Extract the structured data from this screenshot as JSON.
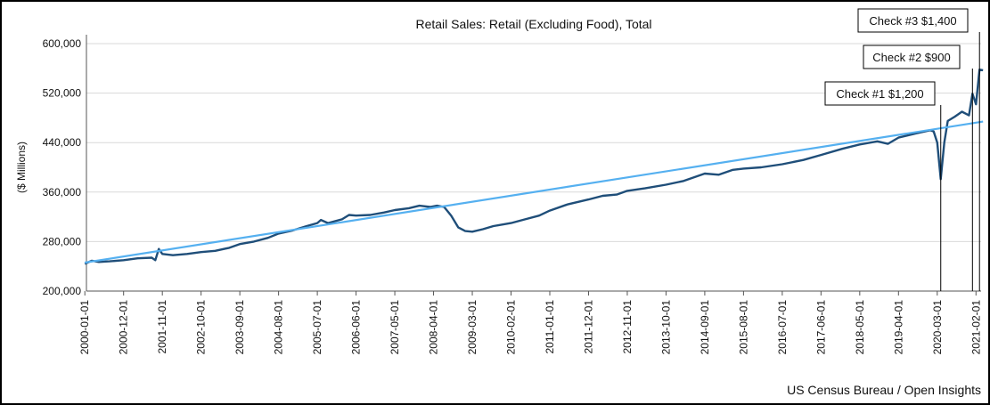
{
  "chart_data": {
    "type": "line",
    "title": "Retail Sales: Retail (Excluding Food), Total",
    "ylabel": "($ Millions)",
    "source": "US Census Bureau / Open Insights",
    "ylim": [
      200000,
      600000
    ],
    "yticks": [
      200000,
      280000,
      360000,
      440000,
      520000,
      600000
    ],
    "ytick_labels": [
      "200,000",
      "280,000",
      "360,000",
      "440,000",
      "520,000",
      "600,000"
    ],
    "xlim": [
      "2000-01-01",
      "2021-03-01"
    ],
    "xtick_labels": [
      "2000-01-01",
      "2000-12-01",
      "2001-11-01",
      "2002-10-01",
      "2003-09-01",
      "2004-08-01",
      "2005-07-01",
      "2006-06-01",
      "2007-05-01",
      "2008-04-01",
      "2009-03-01",
      "2010-02-01",
      "2011-01-01",
      "2011-12-01",
      "2012-11-01",
      "2013-10-01",
      "2014-09-01",
      "2015-08-01",
      "2016-07-01",
      "2017-06-01",
      "2018-05-01",
      "2019-04-01",
      "2020-03-01",
      "2021-02-01"
    ],
    "series": [
      {
        "color": "#1f4e79",
        "points": [
          [
            "2000-01-01",
            244000
          ],
          [
            "2000-03-01",
            249000
          ],
          [
            "2000-05-01",
            247000
          ],
          [
            "2000-08-01",
            248000
          ],
          [
            "2000-12-01",
            250000
          ],
          [
            "2001-04-01",
            253000
          ],
          [
            "2001-08-01",
            254000
          ],
          [
            "2001-09-01",
            250000
          ],
          [
            "2001-10-01",
            268000
          ],
          [
            "2001-11-01",
            260000
          ],
          [
            "2002-02-01",
            258000
          ],
          [
            "2002-06-01",
            260000
          ],
          [
            "2002-10-01",
            263000
          ],
          [
            "2003-02-01",
            265000
          ],
          [
            "2003-06-01",
            270000
          ],
          [
            "2003-09-01",
            276000
          ],
          [
            "2004-01-01",
            280000
          ],
          [
            "2004-05-01",
            286000
          ],
          [
            "2004-08-01",
            293000
          ],
          [
            "2004-12-01",
            298000
          ],
          [
            "2005-04-01",
            305000
          ],
          [
            "2005-07-01",
            310000
          ],
          [
            "2005-08-01",
            315000
          ],
          [
            "2005-10-01",
            310000
          ],
          [
            "2006-02-01",
            316000
          ],
          [
            "2006-04-01",
            323000
          ],
          [
            "2006-06-01",
            322000
          ],
          [
            "2006-10-01",
            323000
          ],
          [
            "2007-02-01",
            327000
          ],
          [
            "2007-05-01",
            331000
          ],
          [
            "2007-09-01",
            334000
          ],
          [
            "2007-12-01",
            338000
          ],
          [
            "2008-03-01",
            336000
          ],
          [
            "2008-05-01",
            338000
          ],
          [
            "2008-07-01",
            336000
          ],
          [
            "2008-09-01",
            322000
          ],
          [
            "2008-11-01",
            303000
          ],
          [
            "2009-01-01",
            297000
          ],
          [
            "2009-03-01",
            296000
          ],
          [
            "2009-06-01",
            300000
          ],
          [
            "2009-09-01",
            305000
          ],
          [
            "2010-02-01",
            310000
          ],
          [
            "2010-06-01",
            316000
          ],
          [
            "2010-10-01",
            322000
          ],
          [
            "2011-01-01",
            330000
          ],
          [
            "2011-06-01",
            340000
          ],
          [
            "2011-12-01",
            348000
          ],
          [
            "2012-04-01",
            354000
          ],
          [
            "2012-08-01",
            356000
          ],
          [
            "2012-11-01",
            362000
          ],
          [
            "2013-04-01",
            366000
          ],
          [
            "2013-10-01",
            372000
          ],
          [
            "2014-03-01",
            378000
          ],
          [
            "2014-09-01",
            390000
          ],
          [
            "2015-01-01",
            388000
          ],
          [
            "2015-05-01",
            396000
          ],
          [
            "2015-08-01",
            398000
          ],
          [
            "2016-01-01",
            400000
          ],
          [
            "2016-07-01",
            405000
          ],
          [
            "2017-01-01",
            412000
          ],
          [
            "2017-06-01",
            420000
          ],
          [
            "2017-12-01",
            430000
          ],
          [
            "2018-05-01",
            437000
          ],
          [
            "2018-10-01",
            442000
          ],
          [
            "2019-01-01",
            438000
          ],
          [
            "2019-04-01",
            448000
          ],
          [
            "2019-09-01",
            455000
          ],
          [
            "2020-01-01",
            460000
          ],
          [
            "2020-02-01",
            458000
          ],
          [
            "2020-03-01",
            440000
          ],
          [
            "2020-04-01",
            381000
          ],
          [
            "2020-05-01",
            440000
          ],
          [
            "2020-06-01",
            475000
          ],
          [
            "2020-08-01",
            482000
          ],
          [
            "2020-10-01",
            490000
          ],
          [
            "2020-12-01",
            484000
          ],
          [
            "2021-01-01",
            519000
          ],
          [
            "2021-02-01",
            502000
          ],
          [
            "2021-03-01",
            558000
          ],
          [
            "2021-04-01",
            557000
          ]
        ]
      },
      {
        "color": "#55b0f0",
        "points": [
          [
            "2000-01-01",
            246000
          ],
          [
            "2021-04-01",
            474000
          ]
        ]
      }
    ],
    "annotations": [
      {
        "label": "Check #1 $1,200",
        "date": "2020-04-01"
      },
      {
        "label": "Check #2 $900",
        "date": "2021-01-01"
      },
      {
        "label": "Check #3 $1,400",
        "date": "2021-03-01"
      }
    ]
  }
}
